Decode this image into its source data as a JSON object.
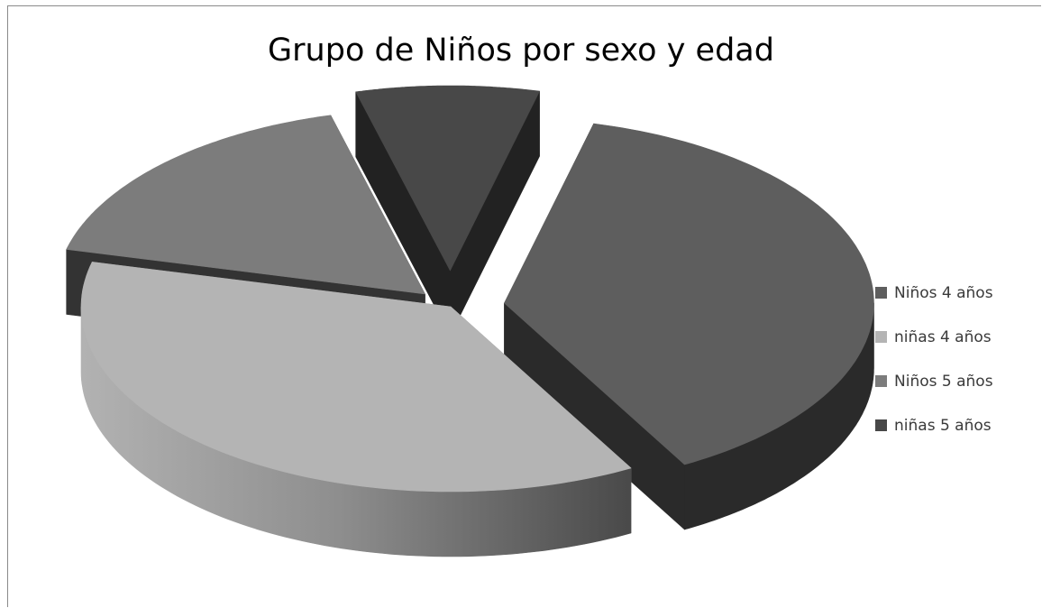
{
  "chart_data": {
    "type": "pie",
    "title": "Grupo de Niños por sexo y edad",
    "categories": [
      "Niños 4 años",
      "niñas 4 años",
      "Niños 5 años",
      "niñas 5 años"
    ],
    "values": [
      38,
      37,
      17,
      8
    ],
    "colors": [
      "#5e5e5e",
      "#b4b4b4",
      "#7c7c7c",
      "#484848"
    ],
    "side_colors": [
      "#2a2a2a",
      "#8a8a8a",
      "#333333",
      "#222222"
    ],
    "legend_position": "right",
    "exploded": true,
    "three_d": true
  }
}
